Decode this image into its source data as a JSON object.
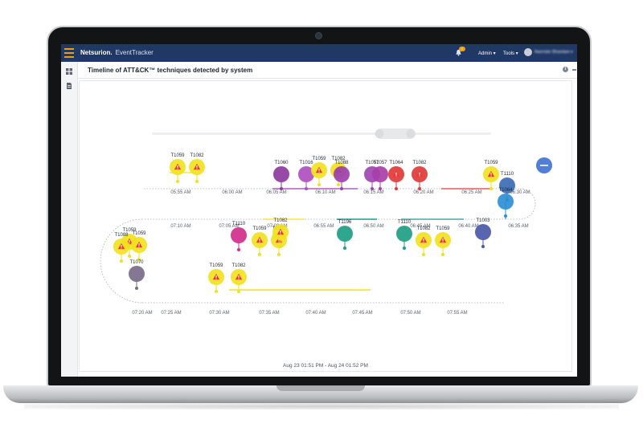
{
  "app": {
    "logo_text": "Netsurion.",
    "brand_text": "EventTracker",
    "notification_count": "1",
    "menus": [
      {
        "label": "Admin ▾"
      },
      {
        "label": "Tools ▾"
      }
    ],
    "user_name": "Narender Bhandare ▾"
  },
  "panel": {
    "title": "Timeline of ATT&CK™ techniques detected by system",
    "info_icon": "i"
  },
  "timeline": {
    "range_label": "Aug 23 01:51 PM - Aug 24 01:52 PM",
    "rows": [
      {
        "ticks": [
          "05:55 AM",
          "06:00 AM",
          "06:05 AM",
          "06:10 AM",
          "06:15 AM",
          "06:20 AM",
          "06:25 AM",
          "06:30 AM"
        ]
      },
      {
        "ticks": [
          "07:10 AM",
          "07:05 AM",
          "07:00 AM",
          "06:55 AM",
          "06:50 AM",
          "06:45 AM",
          "06:40 AM",
          "06:35 AM"
        ]
      },
      {
        "ticks": [
          "07:20 AM",
          "07:25 AM",
          "07:30 AM",
          "07:35 AM",
          "07:40 AM",
          "07:45 AM",
          "07:50 AM",
          "07:55 AM"
        ]
      }
    ],
    "markers": [
      {
        "label": "T1059",
        "color": "#f1e21f"
      },
      {
        "label": "T1082",
        "color": "#f1e21f"
      },
      {
        "label": "T1060",
        "color": "#8e3aa0"
      },
      {
        "label": "T1016",
        "color": "#b04fc0"
      },
      {
        "label": "T1059",
        "color": "#f1e21f"
      },
      {
        "label": "T1082",
        "color": "#f1e21f"
      },
      {
        "label": "T1088",
        "color": "#9c3fb0"
      },
      {
        "label": "T1057",
        "color": "#a044b2"
      },
      {
        "label": "T1057",
        "color": "#a83fa8"
      },
      {
        "label": "T1064",
        "color": "#e03a3a"
      },
      {
        "label": "T1082",
        "color": "#e03a3a"
      },
      {
        "label": "T1059",
        "color": "#f1e21f"
      },
      {
        "label": "T1110",
        "color": "#3b6db5"
      },
      {
        "label": "T1064",
        "color": "#2b8fd6"
      },
      {
        "label": "T1003",
        "color": "#4a58a8"
      },
      {
        "label": "T1059",
        "color": "#f1e21f"
      },
      {
        "label": "T1082",
        "color": "#f1e21f"
      },
      {
        "label": "T1196",
        "color": "#1f9e86"
      },
      {
        "label": "T1110",
        "color": "#1f9e86"
      },
      {
        "label": "T1082",
        "color": "#f1e21f"
      },
      {
        "label": "T1059",
        "color": "#f1e21f"
      },
      {
        "label": "T1110",
        "color": "#d22d8c"
      },
      {
        "label": "T1082",
        "color": "#f1e21f"
      },
      {
        "label": "T1059",
        "color": "#f1e21f"
      },
      {
        "label": "T1088",
        "color": "#f1e21f"
      },
      {
        "label": "T1059",
        "color": "#f1e21f"
      },
      {
        "label": "T1070",
        "color": "#7a6b8a"
      },
      {
        "label": "T1059",
        "color": "#f1e21f"
      },
      {
        "label": "T1082",
        "color": "#f1e21f"
      }
    ]
  }
}
